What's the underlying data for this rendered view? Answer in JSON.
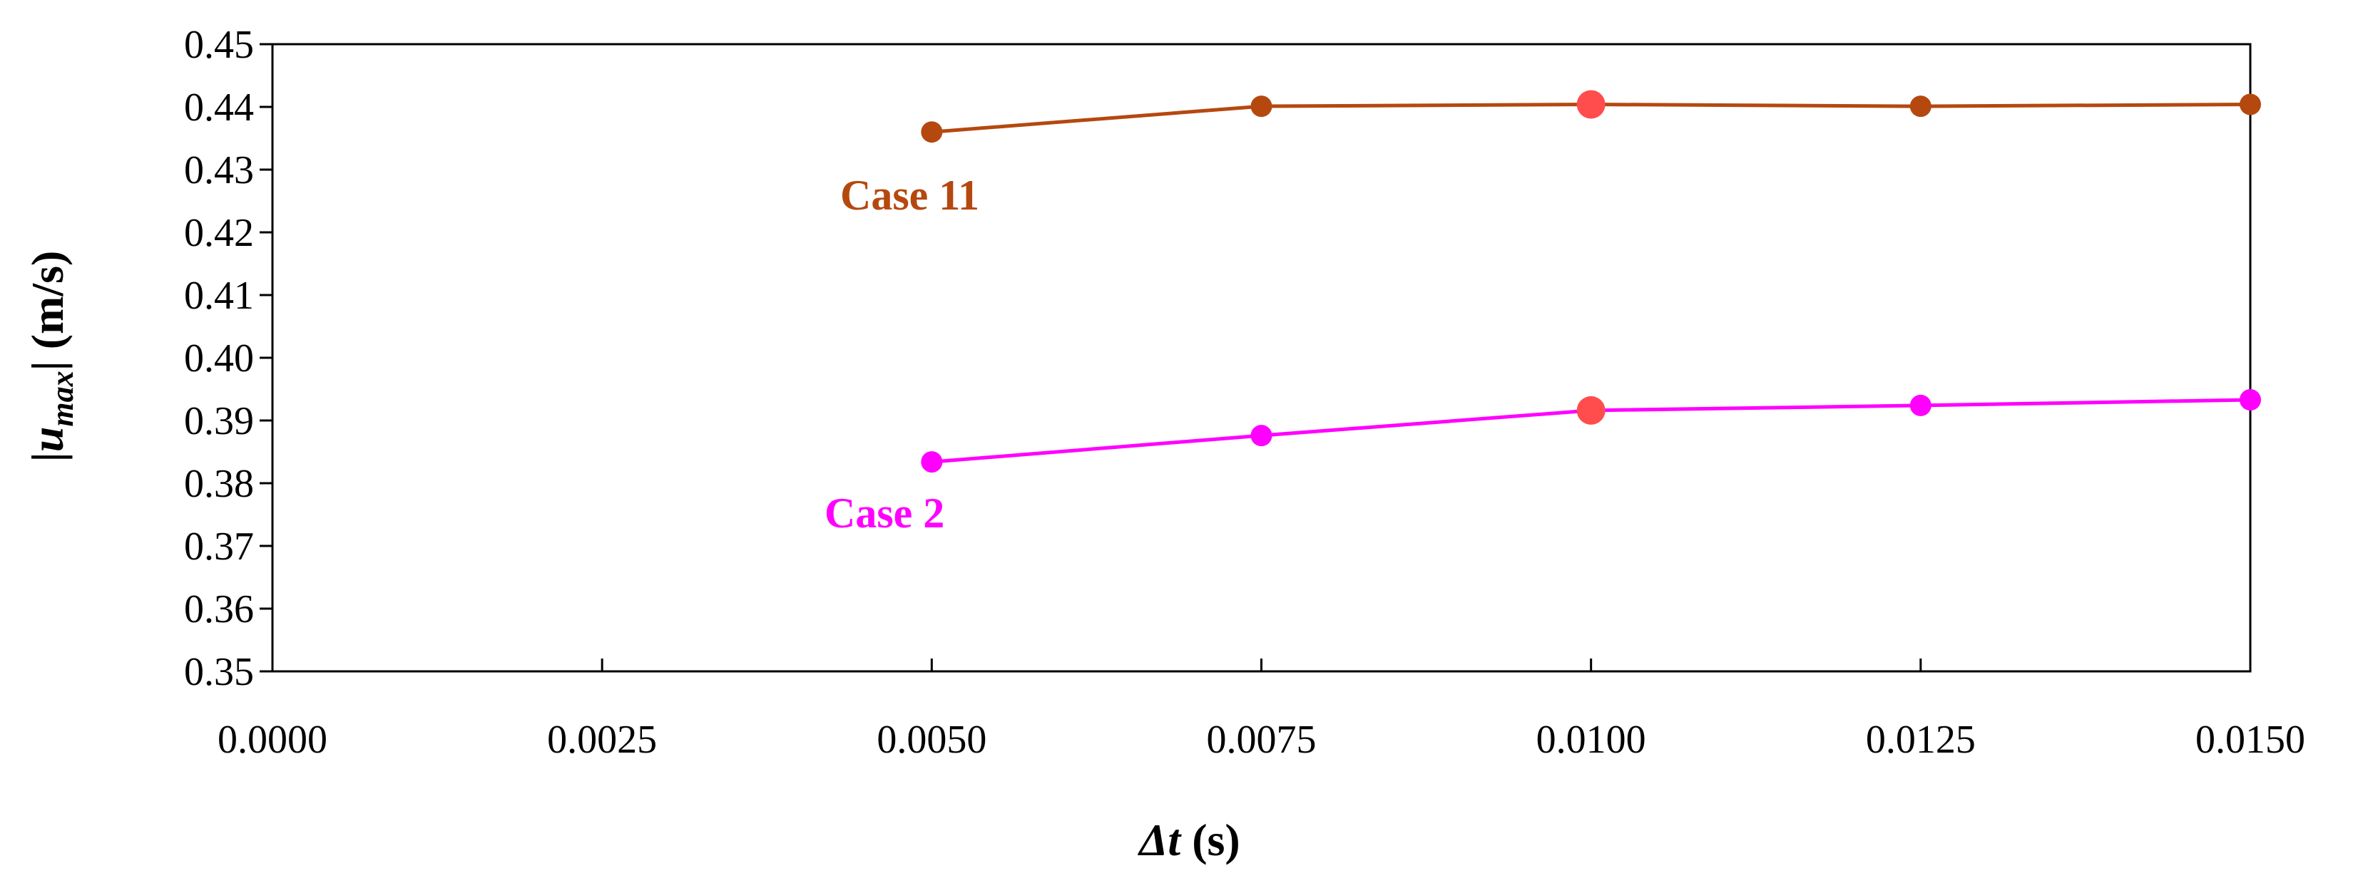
{
  "chart_data": {
    "type": "line",
    "xlabel": {
      "italic": "Δt",
      "rest": " (s)"
    },
    "ylabel": {
      "left_bar": "|",
      "main": "u",
      "sub": "max",
      "right_bar": "|",
      "unit": " (m/s)"
    },
    "xlim": [
      0.0,
      0.015
    ],
    "ylim": [
      0.35,
      0.45
    ],
    "x_ticks": [
      "0.0000",
      "0.0025",
      "0.0050",
      "0.0075",
      "0.0100",
      "0.0125",
      "0.0150"
    ],
    "y_ticks": [
      "0.35",
      "0.36",
      "0.37",
      "0.38",
      "0.39",
      "0.40",
      "0.41",
      "0.42",
      "0.43",
      "0.44",
      "0.45"
    ],
    "grid": false,
    "highlight_color": "#ff4d4d",
    "series": [
      {
        "name": "Case 11",
        "color": "#b5480f",
        "x": [
          0.005,
          0.0075,
          0.01,
          0.0125,
          0.015
        ],
        "y": [
          0.436,
          0.4401,
          0.4404,
          0.4401,
          0.4404
        ],
        "highlight_index": 2
      },
      {
        "name": "Case 2",
        "color": "#ff00ff",
        "x": [
          0.005,
          0.0075,
          0.01,
          0.0125,
          0.015
        ],
        "y": [
          0.3834,
          0.3876,
          0.3916,
          0.3924,
          0.3933
        ],
        "highlight_index": 2
      }
    ]
  }
}
